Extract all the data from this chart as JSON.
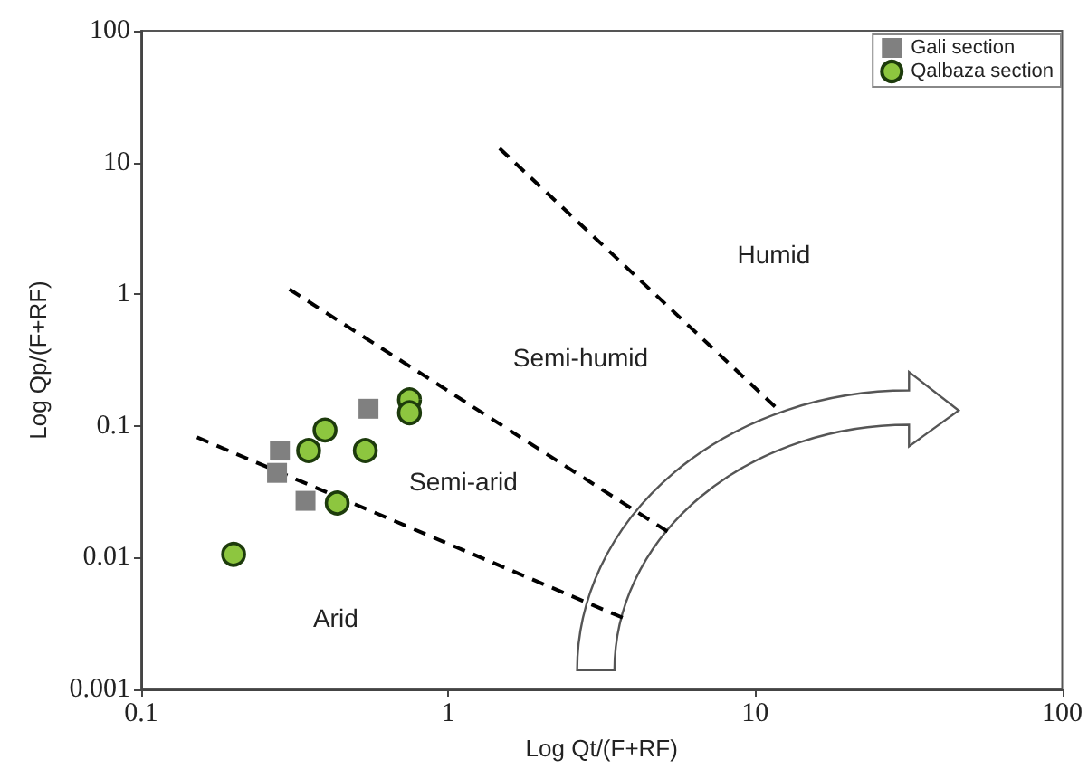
{
  "chart_data": {
    "type": "scatter",
    "xlabel": "Log Qt/(F+RF)",
    "ylabel": "Log Qp/(F+RF)",
    "log": "xy",
    "xlim": [
      0.1,
      100
    ],
    "ylim": [
      0.001,
      100
    ],
    "xticks": [
      0.1,
      1,
      10,
      100
    ],
    "yticks": [
      0.001,
      0.01,
      0.1,
      1,
      10,
      100
    ],
    "grid": false,
    "legend": "top right",
    "series": [
      {
        "name": "Gali section",
        "marker": "square",
        "color": "#808080",
        "x": [
          0.283,
          0.277,
          0.343,
          0.55
        ],
        "values": [
          0.065,
          0.044,
          0.027,
          0.135
        ]
      },
      {
        "name": "Qalbaza section",
        "marker": "circle",
        "color": "#8dc63f",
        "x": [
          0.2,
          0.351,
          0.397,
          0.537,
          0.435,
          0.748,
          0.748
        ],
        "values": [
          0.0106,
          0.065,
          0.093,
          0.065,
          0.026,
          0.158,
          0.126
        ]
      },
      {
        "type": "line",
        "line_style": "dashed",
        "marker": "none",
        "color": "#000000",
        "x": [
          0.152,
          3.7
        ],
        "values": [
          0.082,
          0.0035
        ]
      },
      {
        "type": "line",
        "line_style": "dashed",
        "marker": "none",
        "color": "#000000",
        "x": [
          0.304,
          5.18
        ],
        "values": [
          1.09,
          0.0158
        ]
      },
      {
        "type": "line",
        "line_style": "dashed",
        "marker": "none",
        "color": "#000000",
        "x": [
          1.47,
          11.6
        ],
        "values": [
          12.8,
          0.14
        ]
      }
    ],
    "annotations": [
      "Humid",
      "Semi-humid",
      "Semi-arid",
      "Arid"
    ]
  }
}
